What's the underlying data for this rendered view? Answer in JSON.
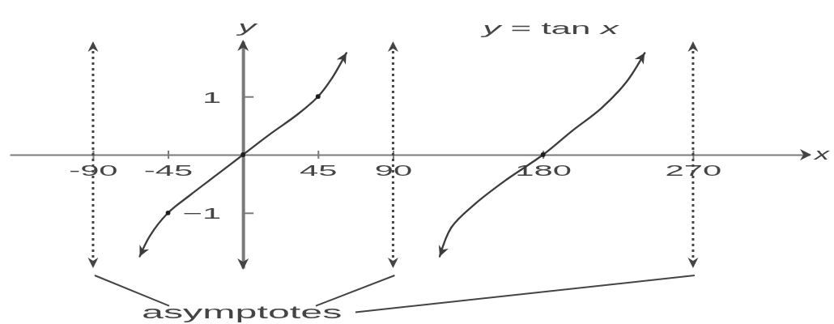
{
  "chart_data": {
    "type": "line",
    "title": "y = tan x",
    "xlabel": "x",
    "ylabel": "y",
    "xlim": [
      -140,
      340
    ],
    "ylim": [
      -1.95,
      1.95
    ],
    "xticks": [
      -90,
      -45,
      45,
      90,
      180,
      270
    ],
    "yticks": [
      {
        "value": -1,
        "label": "−1"
      },
      1
    ],
    "series": [
      {
        "color": "#3c3c3c",
        "x": [
          -62,
          -56,
          -45,
          -32,
          -16,
          0,
          16,
          33,
          45,
          53,
          62
        ],
        "values": [
          -1.75,
          -1.4,
          -1,
          -0.7,
          -0.35,
          0,
          0.35,
          0.7,
          1,
          1.3,
          1.75
        ]
      },
      {
        "color": "#3c3c3c",
        "x": [
          118,
          125,
          139,
          157,
          180,
          197,
          215,
          230,
          241
        ],
        "values": [
          -1.75,
          -1.25,
          -0.85,
          -0.45,
          0,
          0.4,
          0.8,
          1.25,
          1.75
        ]
      },
      {
        "type": "scatter",
        "marker": "circle",
        "color": "#1e1e1e",
        "x": [
          -45,
          0,
          45,
          180
        ],
        "values": [
          -1,
          0,
          1,
          0
        ]
      }
    ],
    "ref_lines": [
      {
        "axis": "x",
        "value": -90,
        "line_style": "dotted",
        "color": "#454545"
      },
      {
        "axis": "x",
        "value": 90,
        "line_style": "dotted",
        "color": "#454545"
      },
      {
        "axis": "x",
        "value": 270,
        "line_style": "dotted",
        "color": "#454545"
      }
    ],
    "annotations": [
      "asymptotes"
    ]
  }
}
